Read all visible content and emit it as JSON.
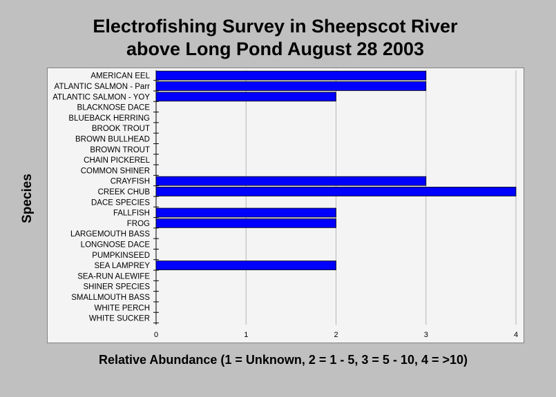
{
  "chart_data": {
    "type": "bar",
    "orientation": "horizontal",
    "title_line1": "Electrofishing Survey in Sheepscot River",
    "title_line2": "above Long Pond August 28 2003",
    "ylabel": "Species",
    "xlabel": "Relative Abundance (1 = Unknown, 2 = 1 - 5, 3 = 5 - 10, 4 = >10)",
    "xlim": [
      0,
      4
    ],
    "xticks": [
      "0",
      "1",
      "2",
      "3",
      "4"
    ],
    "grid": "vertical",
    "bar_color": "#0000ff",
    "categories": [
      "AMERICAN EEL",
      "ATLANTIC SALMON - Parr",
      "ATLANTIC SALMON - YOY",
      "BLACKNOSE DACE",
      "BLUEBACK HERRING",
      "BROOK TROUT",
      "BROWN BULLHEAD",
      "BROWN TROUT",
      "CHAIN PICKEREL",
      "COMMON SHINER",
      "CRAYFISH",
      "CREEK CHUB",
      "DACE SPECIES",
      "FALLFISH",
      "FROG",
      "LARGEMOUTH BASS",
      "LONGNOSE DACE",
      "PUMPKINSEED",
      "SEA LAMPREY",
      "SEA-RUN ALEWIFE",
      "SHINER SPECIES",
      "SMALLMOUTH BASS",
      "WHITE PERCH",
      "WHITE SUCKER"
    ],
    "values": [
      3,
      3,
      2,
      0,
      0,
      0,
      0,
      0,
      0,
      0,
      3,
      4,
      0,
      2,
      2,
      0,
      0,
      0,
      2,
      0,
      0,
      0,
      0,
      0
    ]
  }
}
